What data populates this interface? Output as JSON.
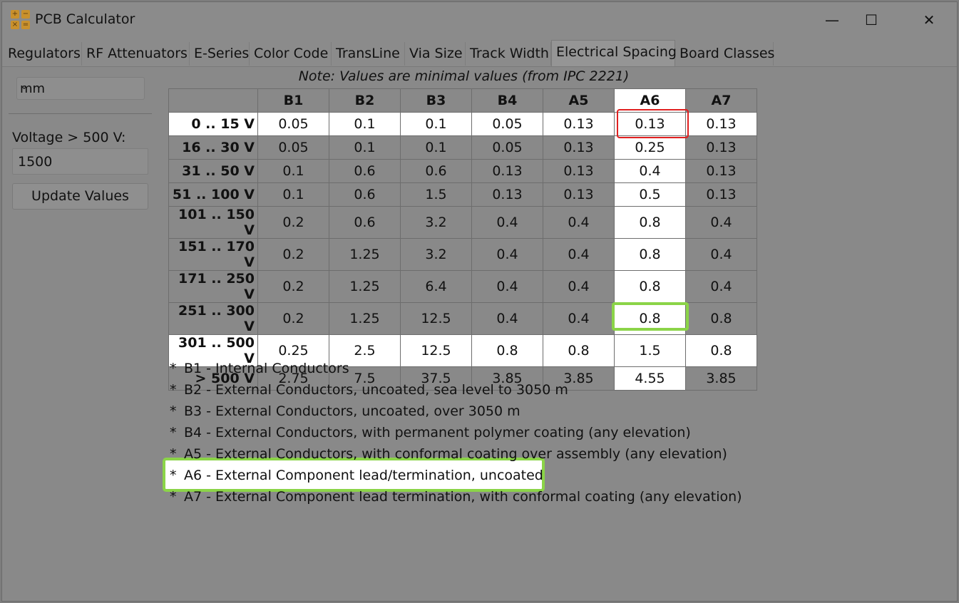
{
  "window": {
    "title": "PCB Calculator",
    "controls": {
      "minimize": "—",
      "maximize": "☐",
      "close": "✕"
    }
  },
  "tabs": [
    "Regulators",
    "RF Attenuators",
    "E-Series",
    "Color Code",
    "TransLine",
    "Via Size",
    "Track Width",
    "Electrical Spacing",
    "Board Classes"
  ],
  "active_tab": "Electrical Spacing",
  "sidebar": {
    "unit": "mm",
    "voltage_label": "Voltage > 500 V:",
    "voltage_value": "1500",
    "update_button": "Update Values"
  },
  "note": "Note: Values are minimal values (from IPC 2221)",
  "table": {
    "columns": [
      "B1",
      "B2",
      "B3",
      "B4",
      "A5",
      "A6",
      "A7"
    ],
    "rows": [
      {
        "label": "0 .. 15 V",
        "values": [
          "0.05",
          "0.1",
          "0.1",
          "0.05",
          "0.13",
          "0.13",
          "0.13"
        ]
      },
      {
        "label": "16 .. 30 V",
        "values": [
          "0.05",
          "0.1",
          "0.1",
          "0.05",
          "0.13",
          "0.25",
          "0.13"
        ]
      },
      {
        "label": "31 .. 50 V",
        "values": [
          "0.1",
          "0.6",
          "0.6",
          "0.13",
          "0.13",
          "0.4",
          "0.13"
        ]
      },
      {
        "label": "51 .. 100 V",
        "values": [
          "0.1",
          "0.6",
          "1.5",
          "0.13",
          "0.13",
          "0.5",
          "0.13"
        ]
      },
      {
        "label": "101 .. 150 V",
        "values": [
          "0.2",
          "0.6",
          "3.2",
          "0.4",
          "0.4",
          "0.8",
          "0.4"
        ]
      },
      {
        "label": "151 .. 170 V",
        "values": [
          "0.2",
          "1.25",
          "3.2",
          "0.4",
          "0.4",
          "0.8",
          "0.4"
        ]
      },
      {
        "label": "171 .. 250 V",
        "values": [
          "0.2",
          "1.25",
          "6.4",
          "0.4",
          "0.4",
          "0.8",
          "0.4"
        ]
      },
      {
        "label": "251 .. 300 V",
        "values": [
          "0.2",
          "1.25",
          "12.5",
          "0.4",
          "0.4",
          "0.8",
          "0.8"
        ]
      },
      {
        "label": "301 .. 500 V",
        "values": [
          "0.25",
          "2.5",
          "12.5",
          "0.8",
          "0.8",
          "1.5",
          "0.8"
        ]
      },
      {
        "label": "> 500 V",
        "values": [
          "2.75",
          "7.5",
          "37.5",
          "3.85",
          "3.85",
          "4.55",
          "3.85"
        ]
      }
    ]
  },
  "legend": [
    "B1 - Internal Conductors",
    "B2 - External Conductors, uncoated, sea level to 3050 m",
    "B3 - External Conductors, uncoated, over 3050 m",
    "B4 - External Conductors, with permanent polymer coating (any elevation)",
    "A5 - External Conductors, with conformal coating over assembly (any elevation)",
    "A6 - External Component lead/termination, uncoated",
    "A7 - External Component lead termination, with conformal coating (any elevation)"
  ],
  "colors": {
    "highlight_red": "#e02020",
    "highlight_green": "#8bd448",
    "dim_background": "#898989"
  }
}
